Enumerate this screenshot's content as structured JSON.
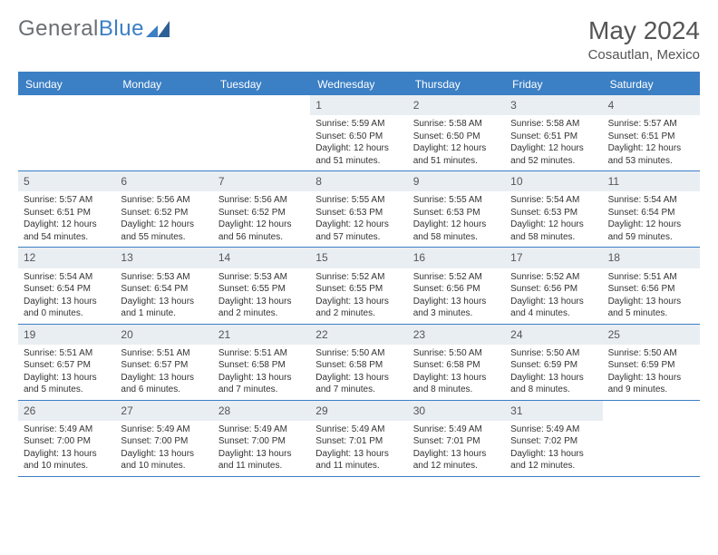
{
  "logo": {
    "text1": "General",
    "text2": "Blue"
  },
  "title": "May 2024",
  "subtitle": "Cosautlan, Mexico",
  "colors": {
    "accent": "#3b7fc4",
    "daynum_bg": "#e9eef3",
    "text": "#333333",
    "muted": "#555555"
  },
  "weekdays": [
    "Sunday",
    "Monday",
    "Tuesday",
    "Wednesday",
    "Thursday",
    "Friday",
    "Saturday"
  ],
  "labels": {
    "sunrise": "Sunrise:",
    "sunset": "Sunset:",
    "daylight": "Daylight:"
  },
  "weeks": [
    [
      null,
      null,
      null,
      {
        "n": "1",
        "sr": "5:59 AM",
        "ss": "6:50 PM",
        "dl": "12 hours and 51 minutes."
      },
      {
        "n": "2",
        "sr": "5:58 AM",
        "ss": "6:50 PM",
        "dl": "12 hours and 51 minutes."
      },
      {
        "n": "3",
        "sr": "5:58 AM",
        "ss": "6:51 PM",
        "dl": "12 hours and 52 minutes."
      },
      {
        "n": "4",
        "sr": "5:57 AM",
        "ss": "6:51 PM",
        "dl": "12 hours and 53 minutes."
      }
    ],
    [
      {
        "n": "5",
        "sr": "5:57 AM",
        "ss": "6:51 PM",
        "dl": "12 hours and 54 minutes."
      },
      {
        "n": "6",
        "sr": "5:56 AM",
        "ss": "6:52 PM",
        "dl": "12 hours and 55 minutes."
      },
      {
        "n": "7",
        "sr": "5:56 AM",
        "ss": "6:52 PM",
        "dl": "12 hours and 56 minutes."
      },
      {
        "n": "8",
        "sr": "5:55 AM",
        "ss": "6:53 PM",
        "dl": "12 hours and 57 minutes."
      },
      {
        "n": "9",
        "sr": "5:55 AM",
        "ss": "6:53 PM",
        "dl": "12 hours and 58 minutes."
      },
      {
        "n": "10",
        "sr": "5:54 AM",
        "ss": "6:53 PM",
        "dl": "12 hours and 58 minutes."
      },
      {
        "n": "11",
        "sr": "5:54 AM",
        "ss": "6:54 PM",
        "dl": "12 hours and 59 minutes."
      }
    ],
    [
      {
        "n": "12",
        "sr": "5:54 AM",
        "ss": "6:54 PM",
        "dl": "13 hours and 0 minutes."
      },
      {
        "n": "13",
        "sr": "5:53 AM",
        "ss": "6:54 PM",
        "dl": "13 hours and 1 minute."
      },
      {
        "n": "14",
        "sr": "5:53 AM",
        "ss": "6:55 PM",
        "dl": "13 hours and 2 minutes."
      },
      {
        "n": "15",
        "sr": "5:52 AM",
        "ss": "6:55 PM",
        "dl": "13 hours and 2 minutes."
      },
      {
        "n": "16",
        "sr": "5:52 AM",
        "ss": "6:56 PM",
        "dl": "13 hours and 3 minutes."
      },
      {
        "n": "17",
        "sr": "5:52 AM",
        "ss": "6:56 PM",
        "dl": "13 hours and 4 minutes."
      },
      {
        "n": "18",
        "sr": "5:51 AM",
        "ss": "6:56 PM",
        "dl": "13 hours and 5 minutes."
      }
    ],
    [
      {
        "n": "19",
        "sr": "5:51 AM",
        "ss": "6:57 PM",
        "dl": "13 hours and 5 minutes."
      },
      {
        "n": "20",
        "sr": "5:51 AM",
        "ss": "6:57 PM",
        "dl": "13 hours and 6 minutes."
      },
      {
        "n": "21",
        "sr": "5:51 AM",
        "ss": "6:58 PM",
        "dl": "13 hours and 7 minutes."
      },
      {
        "n": "22",
        "sr": "5:50 AM",
        "ss": "6:58 PM",
        "dl": "13 hours and 7 minutes."
      },
      {
        "n": "23",
        "sr": "5:50 AM",
        "ss": "6:58 PM",
        "dl": "13 hours and 8 minutes."
      },
      {
        "n": "24",
        "sr": "5:50 AM",
        "ss": "6:59 PM",
        "dl": "13 hours and 8 minutes."
      },
      {
        "n": "25",
        "sr": "5:50 AM",
        "ss": "6:59 PM",
        "dl": "13 hours and 9 minutes."
      }
    ],
    [
      {
        "n": "26",
        "sr": "5:49 AM",
        "ss": "7:00 PM",
        "dl": "13 hours and 10 minutes."
      },
      {
        "n": "27",
        "sr": "5:49 AM",
        "ss": "7:00 PM",
        "dl": "13 hours and 10 minutes."
      },
      {
        "n": "28",
        "sr": "5:49 AM",
        "ss": "7:00 PM",
        "dl": "13 hours and 11 minutes."
      },
      {
        "n": "29",
        "sr": "5:49 AM",
        "ss": "7:01 PM",
        "dl": "13 hours and 11 minutes."
      },
      {
        "n": "30",
        "sr": "5:49 AM",
        "ss": "7:01 PM",
        "dl": "13 hours and 12 minutes."
      },
      {
        "n": "31",
        "sr": "5:49 AM",
        "ss": "7:02 PM",
        "dl": "13 hours and 12 minutes."
      },
      null
    ]
  ]
}
